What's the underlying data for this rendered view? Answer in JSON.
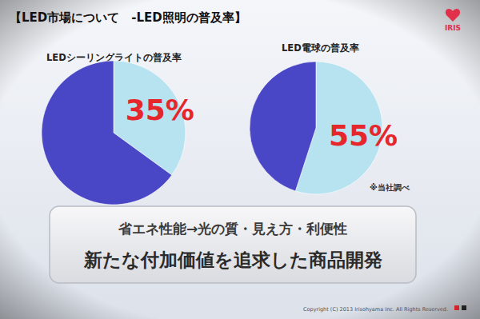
{
  "title": "【LED市場について　-LED照明の普及率】",
  "logo": "IRIS",
  "note": "※当社調べ",
  "message": {
    "line1": "省エネ性能→光の質・見え方・利便性",
    "line2": "新たな付加価値を追求した商品開発"
  },
  "copyright": "Copyright (C) 2013 Irisohyama Inc. All Rights Reserved.",
  "chart_data": [
    {
      "type": "pie",
      "title": "LEDシーリングライトの普及率",
      "categories": [
        null,
        null
      ],
      "values": [
        35,
        65
      ],
      "value_labels": [
        "35%",
        null
      ],
      "data_labels": true,
      "colors": [
        "#b7e2ef",
        "#4a47c6"
      ]
    },
    {
      "type": "pie",
      "title": "LED電球の普及率",
      "categories": [
        null,
        null
      ],
      "values": [
        55,
        45
      ],
      "value_labels": [
        "55%",
        null
      ],
      "data_labels": true,
      "colors": [
        "#b7e2ef",
        "#4a47c6"
      ]
    }
  ]
}
